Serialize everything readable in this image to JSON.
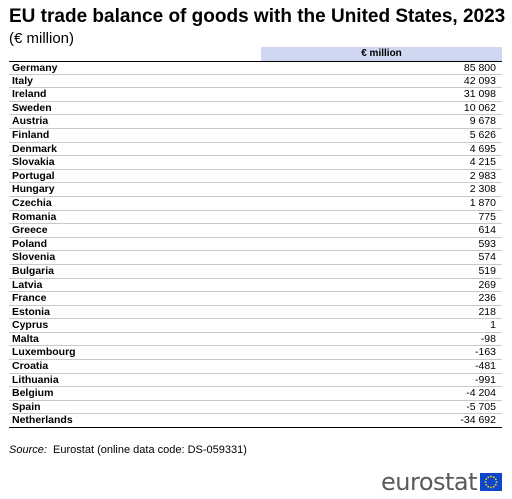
{
  "header": {
    "title": "EU trade balance of goods with the United States, 2023",
    "subtitle": "(€ million)"
  },
  "chart_data": {
    "type": "table",
    "title": "EU trade balance of goods with the United States, 2023",
    "subtitle": "(€ million)",
    "columns": [
      "€ million"
    ],
    "rows": [
      {
        "country": "Germany",
        "value": 85800,
        "display": "85 800"
      },
      {
        "country": "Italy",
        "value": 42093,
        "display": "42 093"
      },
      {
        "country": "Ireland",
        "value": 31098,
        "display": "31 098"
      },
      {
        "country": "Sweden",
        "value": 10062,
        "display": "10 062"
      },
      {
        "country": "Austria",
        "value": 9678,
        "display": "9 678"
      },
      {
        "country": "Finland",
        "value": 5626,
        "display": "5 626"
      },
      {
        "country": "Denmark",
        "value": 4695,
        "display": "4 695"
      },
      {
        "country": "Slovakia",
        "value": 4215,
        "display": "4 215"
      },
      {
        "country": "Portugal",
        "value": 2983,
        "display": "2 983"
      },
      {
        "country": "Hungary",
        "value": 2308,
        "display": "2 308"
      },
      {
        "country": "Czechia",
        "value": 1870,
        "display": "1 870"
      },
      {
        "country": "Romania",
        "value": 775,
        "display": "775"
      },
      {
        "country": "Greece",
        "value": 614,
        "display": "614"
      },
      {
        "country": "Poland",
        "value": 593,
        "display": "593"
      },
      {
        "country": "Slovenia",
        "value": 574,
        "display": "574"
      },
      {
        "country": "Bulgaria",
        "value": 519,
        "display": "519"
      },
      {
        "country": "Latvia",
        "value": 269,
        "display": "269"
      },
      {
        "country": "France",
        "value": 236,
        "display": "236"
      },
      {
        "country": "Estonia",
        "value": 218,
        "display": "218"
      },
      {
        "country": "Cyprus",
        "value": 1,
        "display": "1"
      },
      {
        "country": "Malta",
        "value": -98,
        "display": "-98"
      },
      {
        "country": "Luxembourg",
        "value": -163,
        "display": "-163"
      },
      {
        "country": "Croatia",
        "value": -481,
        "display": "-481"
      },
      {
        "country": "Lithuania",
        "value": -991,
        "display": "-991"
      },
      {
        "country": "Belgium",
        "value": -4204,
        "display": "-4 204"
      },
      {
        "country": "Spain",
        "value": -5705,
        "display": "-5 705"
      },
      {
        "country": "Netherlands",
        "value": -34692,
        "display": "-34 692"
      }
    ]
  },
  "source": {
    "label": "Source:",
    "text": "Eurostat (online data code: DS-059331)"
  },
  "logo": {
    "text": "eurostat",
    "flag_color": "#0e47cb",
    "star_color": "#ffd617"
  }
}
